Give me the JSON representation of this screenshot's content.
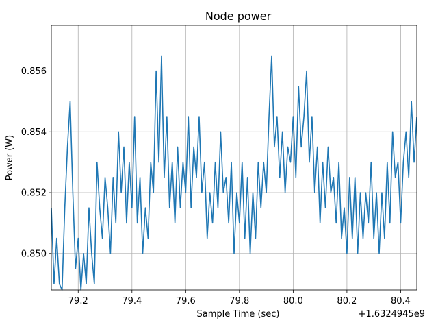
{
  "chart_data": {
    "type": "line",
    "title": "Node power",
    "xlabel": "Sample Time (sec)",
    "ylabel": "Power (W)",
    "x_offset_label": "+1.6324945e9",
    "xlim": [
      79.1,
      80.46
    ],
    "ylim": [
      0.8488,
      0.8575
    ],
    "grid": true,
    "line_color": "#1f77b4",
    "x_ticks": [
      79.2,
      79.4,
      79.6,
      79.8,
      80.0,
      80.2,
      80.4
    ],
    "x_tick_labels": [
      "79.2",
      "79.4",
      "79.6",
      "79.8",
      "80.0",
      "80.2",
      "80.4"
    ],
    "y_ticks": [
      0.85,
      0.852,
      0.854,
      0.856
    ],
    "y_tick_labels": [
      "0.850",
      "0.852",
      "0.854",
      "0.856"
    ],
    "series": [
      {
        "x": [
          79.1,
          79.11,
          79.12,
          79.13,
          79.14,
          79.15,
          79.16,
          79.17,
          79.18,
          79.19,
          79.2,
          79.21,
          79.22,
          79.23,
          79.24,
          79.25,
          79.26,
          79.27,
          79.28,
          79.29,
          79.3,
          79.31,
          79.32,
          79.33,
          79.34,
          79.35,
          79.36,
          79.37,
          79.38,
          79.39,
          79.4,
          79.41,
          79.42,
          79.43,
          79.44,
          79.45,
          79.46,
          79.47,
          79.48,
          79.49,
          79.5,
          79.51,
          79.52,
          79.53,
          79.54,
          79.55,
          79.56,
          79.57,
          79.58,
          79.59,
          79.6,
          79.61,
          79.62,
          79.63,
          79.64,
          79.65,
          79.66,
          79.67,
          79.68,
          79.69,
          79.7,
          79.71,
          79.72,
          79.73,
          79.74,
          79.75,
          79.76,
          79.77,
          79.78,
          79.79,
          79.8,
          79.81,
          79.82,
          79.83,
          79.84,
          79.85,
          79.86,
          79.87,
          79.88,
          79.89,
          79.9,
          79.91,
          79.92,
          79.93,
          79.94,
          79.95,
          79.96,
          79.97,
          79.98,
          79.99,
          80.0,
          80.01,
          80.02,
          80.03,
          80.04,
          80.05,
          80.06,
          80.07,
          80.08,
          80.09,
          80.1,
          80.11,
          80.12,
          80.13,
          80.14,
          80.15,
          80.16,
          80.17,
          80.18,
          80.19,
          80.2,
          80.21,
          80.22,
          80.23,
          80.24,
          80.25,
          80.26,
          80.27,
          80.28,
          80.29,
          80.3,
          80.31,
          80.32,
          80.33,
          80.34,
          80.35,
          80.36,
          80.37,
          80.38,
          80.39,
          80.4,
          80.41,
          80.42,
          80.43,
          80.44,
          80.45,
          80.46
        ],
        "values": [
          0.8515,
          0.849,
          0.8505,
          0.849,
          0.8485,
          0.8515,
          0.8535,
          0.855,
          0.852,
          0.8495,
          0.8505,
          0.8488,
          0.85,
          0.849,
          0.8515,
          0.85,
          0.849,
          0.853,
          0.8515,
          0.8505,
          0.8525,
          0.8515,
          0.85,
          0.8525,
          0.851,
          0.854,
          0.852,
          0.8535,
          0.851,
          0.853,
          0.8515,
          0.8545,
          0.851,
          0.8525,
          0.85,
          0.8515,
          0.8505,
          0.853,
          0.852,
          0.856,
          0.853,
          0.8565,
          0.8525,
          0.8545,
          0.8515,
          0.853,
          0.851,
          0.8535,
          0.8515,
          0.853,
          0.852,
          0.8545,
          0.8515,
          0.8535,
          0.8525,
          0.8545,
          0.852,
          0.853,
          0.8505,
          0.852,
          0.851,
          0.853,
          0.8515,
          0.854,
          0.852,
          0.8525,
          0.851,
          0.853,
          0.85,
          0.852,
          0.851,
          0.853,
          0.8505,
          0.8525,
          0.85,
          0.852,
          0.8505,
          0.853,
          0.8515,
          0.853,
          0.852,
          0.8545,
          0.8565,
          0.8535,
          0.8545,
          0.8525,
          0.854,
          0.852,
          0.8535,
          0.853,
          0.8545,
          0.8525,
          0.8555,
          0.8535,
          0.8545,
          0.856,
          0.853,
          0.8545,
          0.852,
          0.8535,
          0.851,
          0.853,
          0.8515,
          0.8535,
          0.852,
          0.8525,
          0.851,
          0.853,
          0.8505,
          0.8515,
          0.85,
          0.8525,
          0.8505,
          0.8525,
          0.85,
          0.852,
          0.8505,
          0.852,
          0.851,
          0.853,
          0.8505,
          0.852,
          0.85,
          0.852,
          0.8505,
          0.853,
          0.851,
          0.854,
          0.8525,
          0.853,
          0.851,
          0.853,
          0.854,
          0.8525,
          0.855,
          0.853,
          0.8545
        ]
      }
    ]
  }
}
